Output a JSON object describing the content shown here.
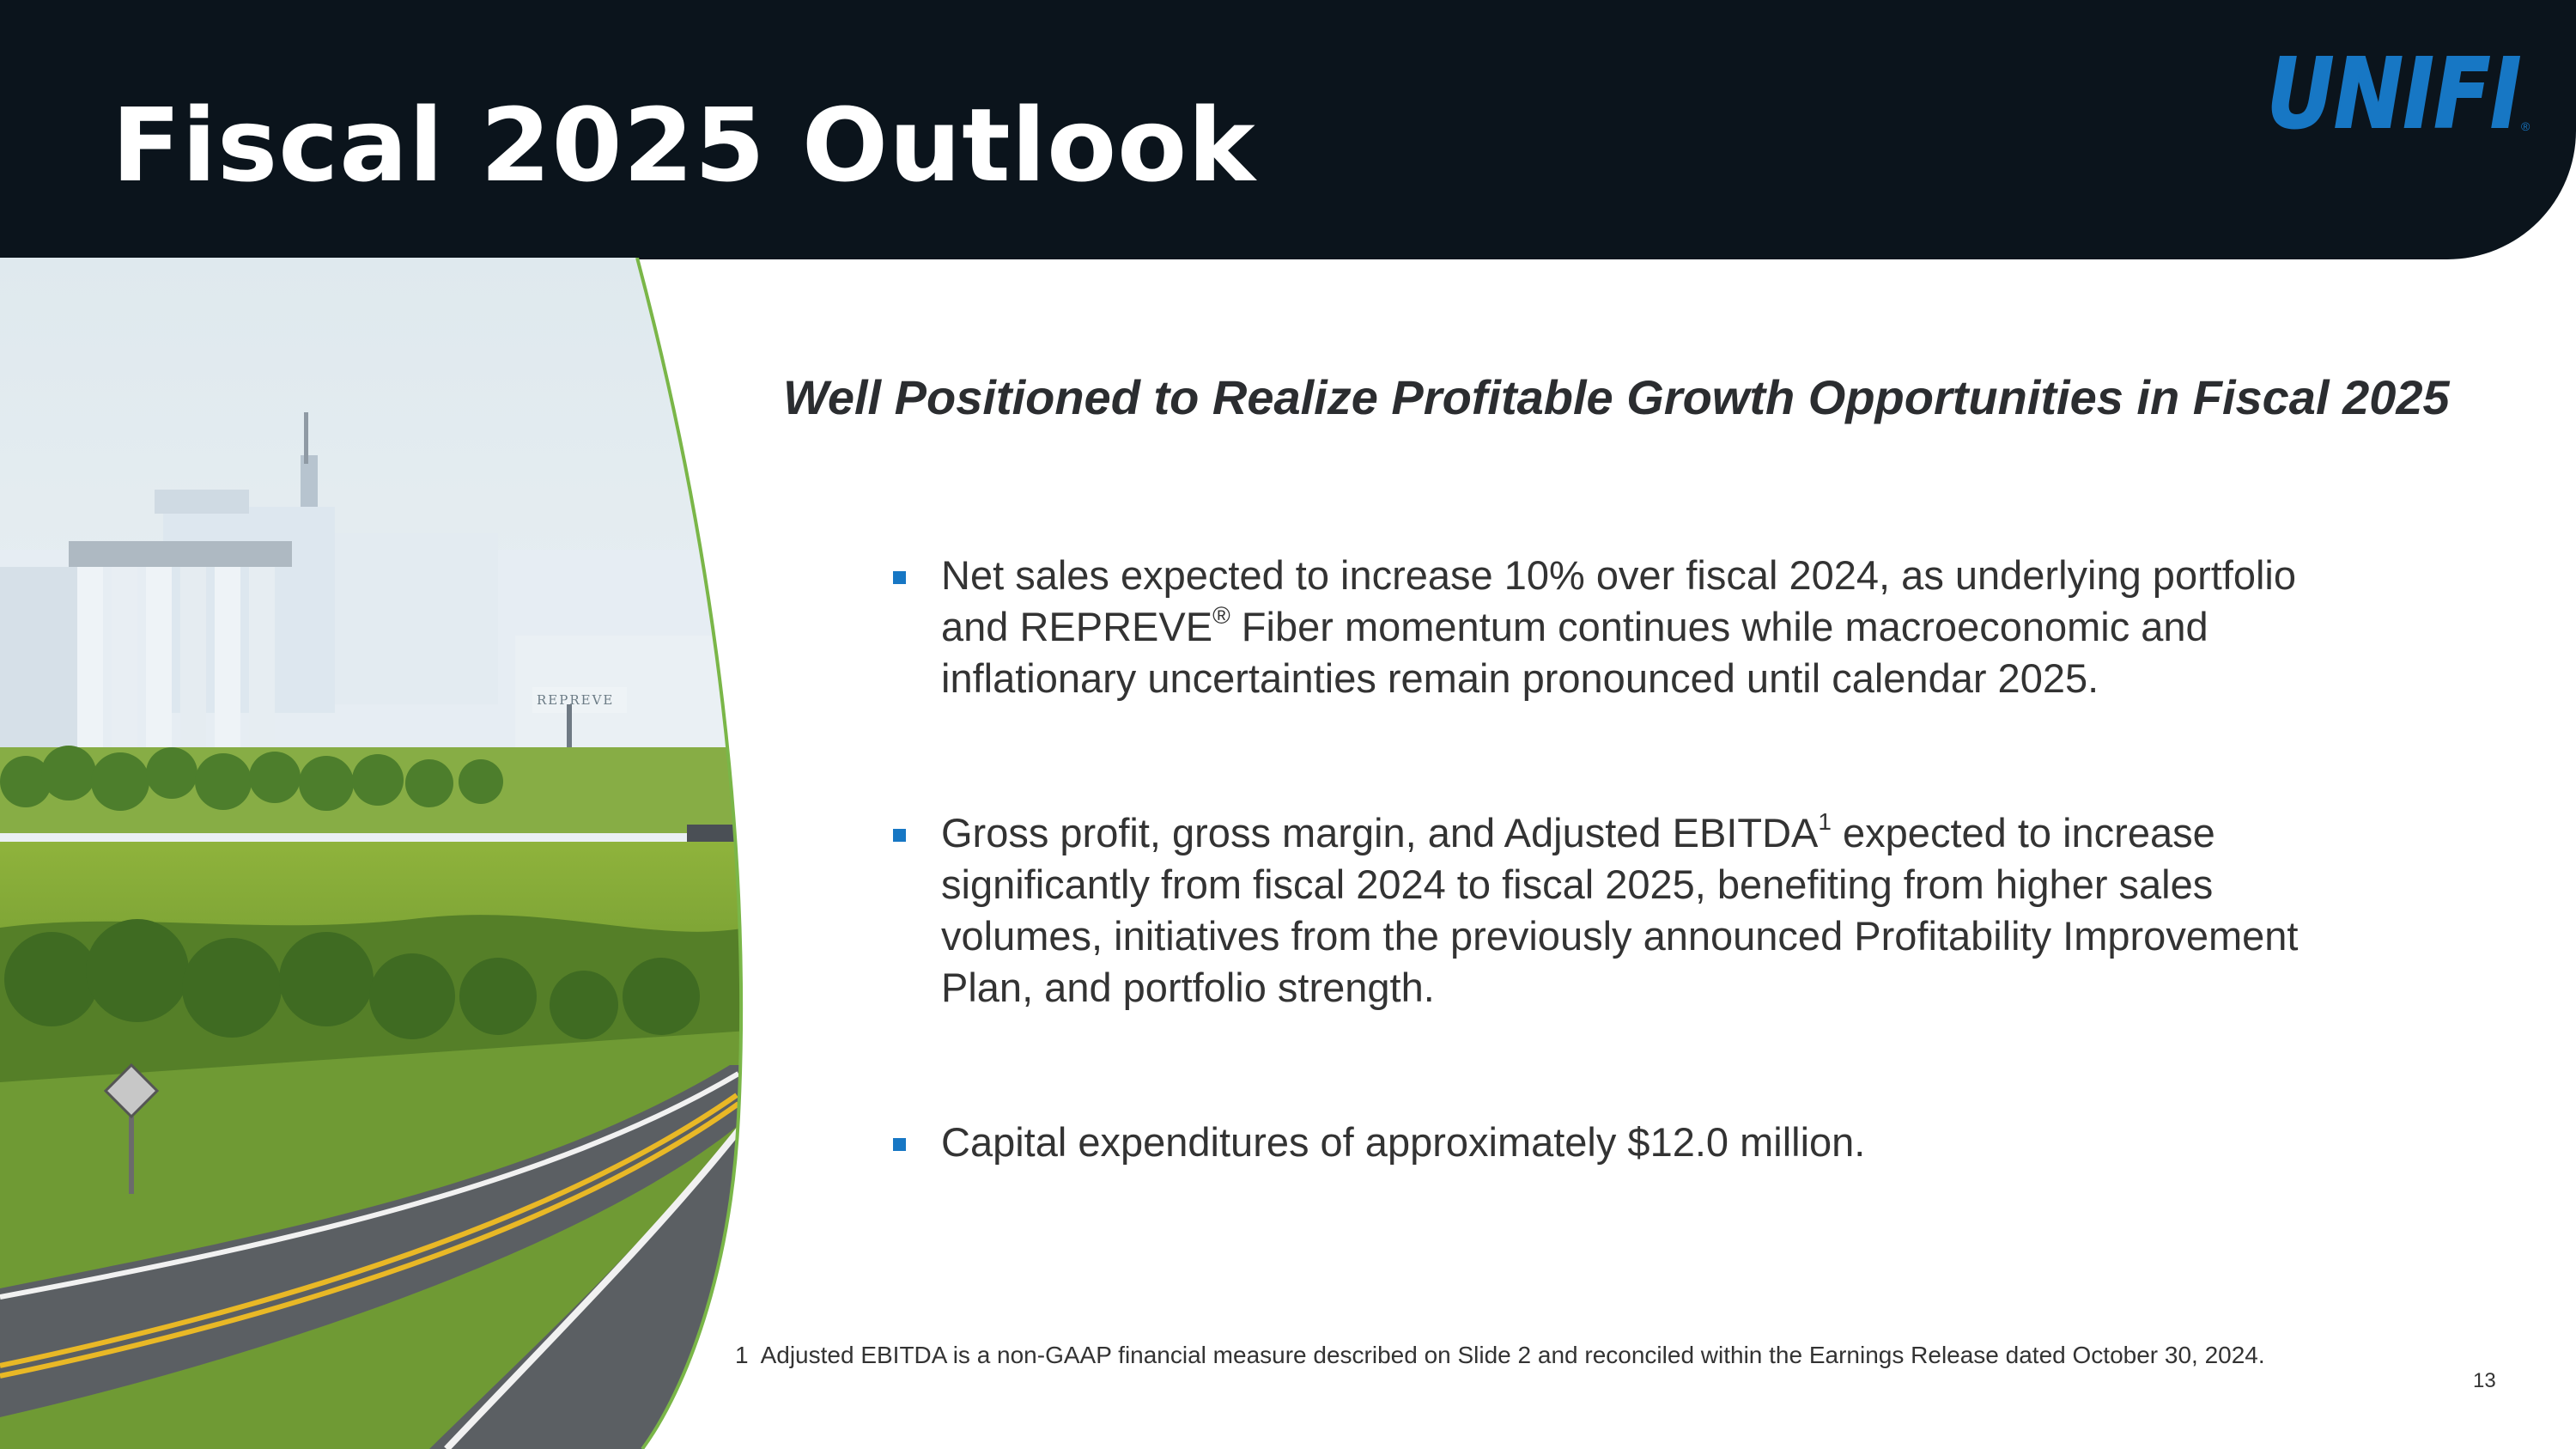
{
  "header": {
    "title": "Fiscal 2025 Outlook",
    "logo_text": "UNIFI",
    "logo_registered": "®"
  },
  "photo": {
    "building_sign": "REPREVE"
  },
  "subtitle": "Well Positioned to Realize Profitable Growth Opportunities in Fiscal 2025",
  "bullets": [
    {
      "line1": "Net sales expected to increase 10% over fiscal 2024, as underlying portfolio",
      "line2_a": "and REPREVE",
      "line2_sup": "®",
      "line2_b": " Fiber momentum continues while macroeconomic and",
      "line3": "inflationary uncertainties remain pronounced until calendar 2025."
    },
    {
      "line1_a": "Gross profit, gross margin, and Adjusted EBITDA",
      "line1_sup": "1",
      "line1_b": " expected to increase",
      "line2": "significantly from fiscal 2024 to fiscal 2025, benefiting from higher sales",
      "line3": "volumes, initiatives from the previously announced Profitability Improvement",
      "line4": "Plan, and portfolio strength."
    },
    {
      "line1": "Capital expenditures of approximately $12.0 million."
    }
  ],
  "footnote": {
    "number": "1",
    "text": "Adjusted EBITDA is a non-GAAP financial measure described on Slide 2 and reconciled within the Earnings Release dated October 30, 2024."
  },
  "page_number": "13",
  "colors": {
    "header_bg": "#0b141c",
    "brand_blue": "#1777c4",
    "accent_green": "#7ab648",
    "text": "#333333"
  }
}
